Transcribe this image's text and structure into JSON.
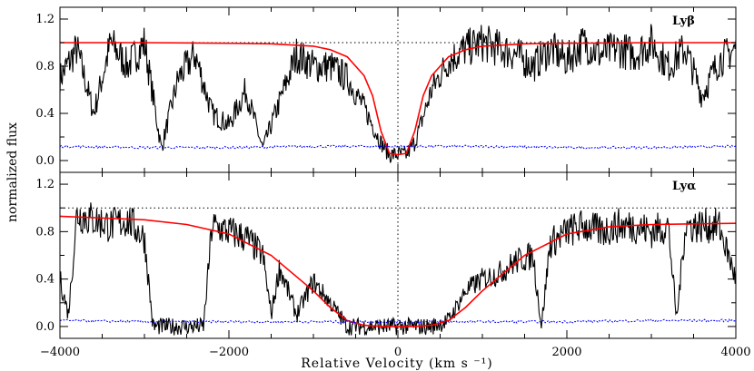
{
  "chart_data": [
    {
      "type": "line",
      "panel_label": "Lyβ",
      "xlim": [
        -4000,
        4000
      ],
      "ylim": [
        -0.1,
        1.3
      ],
      "yticks": [
        0.0,
        0.4,
        0.8,
        1.2
      ],
      "ytick_labels": [
        "0.0",
        "0.4",
        "0.8",
        "1.2"
      ],
      "continuum_level": 1.0,
      "zero_velocity_marker": 0,
      "colors": {
        "flux": "#000000",
        "model": "#ff0000",
        "error": "#0000ff",
        "reference": "#000000"
      },
      "series": [
        {
          "role": "flux",
          "x": [
            -4000,
            -3800,
            -3600,
            -3400,
            -3200,
            -3000,
            -2800,
            -2600,
            -2400,
            -2200,
            -2000,
            -1800,
            -1600,
            -1400,
            -1200,
            -1000,
            -800,
            -600,
            -400,
            -200,
            -100,
            0,
            100,
            200,
            400,
            600,
            800,
            1000,
            1200,
            1400,
            1600,
            1800,
            2000,
            2200,
            2400,
            2600,
            2800,
            3000,
            3200,
            3400,
            3600,
            3800,
            4000
          ],
          "y": [
            0.7,
            0.95,
            0.4,
            1.0,
            0.8,
            1.0,
            0.1,
            0.7,
            0.9,
            0.4,
            0.3,
            0.6,
            0.1,
            0.5,
            0.9,
            0.8,
            0.8,
            0.7,
            0.45,
            0.15,
            0.05,
            0.05,
            0.05,
            0.15,
            0.6,
            0.85,
            0.95,
            1.0,
            0.95,
            0.9,
            0.8,
            0.95,
            0.85,
            1.0,
            0.9,
            0.95,
            0.9,
            1.0,
            0.8,
            0.95,
            0.55,
            0.85,
            0.95
          ]
        },
        {
          "role": "model",
          "x": [
            -4000,
            -3000,
            -2000,
            -1500,
            -1000,
            -800,
            -600,
            -400,
            -300,
            -200,
            -100,
            0,
            100,
            200,
            300,
            400,
            600,
            800,
            1000,
            1500,
            2000,
            3000,
            4000
          ],
          "y": [
            1.0,
            1.0,
            0.995,
            0.99,
            0.97,
            0.94,
            0.88,
            0.72,
            0.55,
            0.25,
            0.06,
            0.05,
            0.06,
            0.25,
            0.55,
            0.72,
            0.88,
            0.94,
            0.97,
            0.99,
            0.995,
            1.0,
            1.0
          ]
        },
        {
          "role": "error",
          "x": [
            -4000,
            -3000,
            -2000,
            -1000,
            0,
            1000,
            2000,
            3000,
            4000
          ],
          "y": [
            0.12,
            0.11,
            0.11,
            0.12,
            0.12,
            0.12,
            0.11,
            0.11,
            0.12
          ]
        }
      ]
    },
    {
      "type": "line",
      "panel_label": "Lyα",
      "xlim": [
        -4000,
        4000
      ],
      "ylim": [
        -0.1,
        1.3
      ],
      "yticks": [
        0.0,
        0.4,
        0.8,
        1.2
      ],
      "ytick_labels": [
        "0.0",
        "0.4",
        "0.8",
        "1.2"
      ],
      "xticks": [
        -4000,
        -2000,
        0,
        2000,
        4000
      ],
      "xtick_labels": [
        "−4000",
        "−2000",
        "0",
        "2000",
        "4000"
      ],
      "continuum_level": 1.0,
      "zero_velocity_marker": 0,
      "colors": {
        "flux": "#000000",
        "model": "#ff0000",
        "error": "#0000ff",
        "reference": "#000000"
      },
      "series": [
        {
          "role": "flux",
          "x": [
            -4000,
            -3900,
            -3800,
            -3600,
            -3400,
            -3200,
            -3000,
            -2900,
            -2800,
            -2600,
            -2400,
            -2300,
            -2200,
            -2000,
            -1800,
            -1600,
            -1500,
            -1400,
            -1200,
            -1000,
            -800,
            -600,
            -400,
            -200,
            0,
            200,
            400,
            600,
            800,
            1000,
            1200,
            1400,
            1600,
            1700,
            1800,
            2000,
            2200,
            2400,
            2600,
            2800,
            3000,
            3200,
            3300,
            3400,
            3600,
            3800,
            4000
          ],
          "y": [
            0.4,
            0.1,
            0.95,
            0.9,
            0.85,
            0.9,
            0.75,
            0.0,
            0.0,
            0.0,
            0.0,
            0.0,
            0.85,
            0.8,
            0.75,
            0.6,
            0.1,
            0.5,
            0.1,
            0.38,
            0.2,
            0.0,
            0.0,
            0.0,
            0.0,
            0.0,
            0.0,
            0.05,
            0.3,
            0.4,
            0.45,
            0.55,
            0.6,
            0.0,
            0.7,
            0.8,
            0.85,
            0.8,
            0.85,
            0.85,
            0.8,
            0.85,
            0.05,
            0.85,
            0.85,
            0.85,
            0.4
          ]
        },
        {
          "role": "model",
          "x": [
            -4000,
            -3000,
            -2500,
            -2000,
            -1500,
            -1000,
            -800,
            -600,
            -400,
            -200,
            0,
            200,
            400,
            600,
            800,
            1000,
            1500,
            2000,
            2500,
            3000,
            4000
          ],
          "y": [
            0.93,
            0.9,
            0.86,
            0.78,
            0.6,
            0.3,
            0.16,
            0.05,
            0.01,
            0.0,
            0.0,
            0.0,
            0.01,
            0.05,
            0.16,
            0.3,
            0.6,
            0.78,
            0.84,
            0.86,
            0.87
          ]
        },
        {
          "role": "error",
          "x": [
            -4000,
            -3000,
            -2000,
            -1000,
            0,
            1000,
            2000,
            3000,
            4000
          ],
          "y": [
            0.05,
            0.04,
            0.04,
            0.04,
            0.04,
            0.04,
            0.04,
            0.05,
            0.05
          ]
        }
      ]
    }
  ],
  "axes": {
    "ylabel": "normalized flux",
    "xlabel": "Relative Velocity (km s ⁻¹)"
  }
}
